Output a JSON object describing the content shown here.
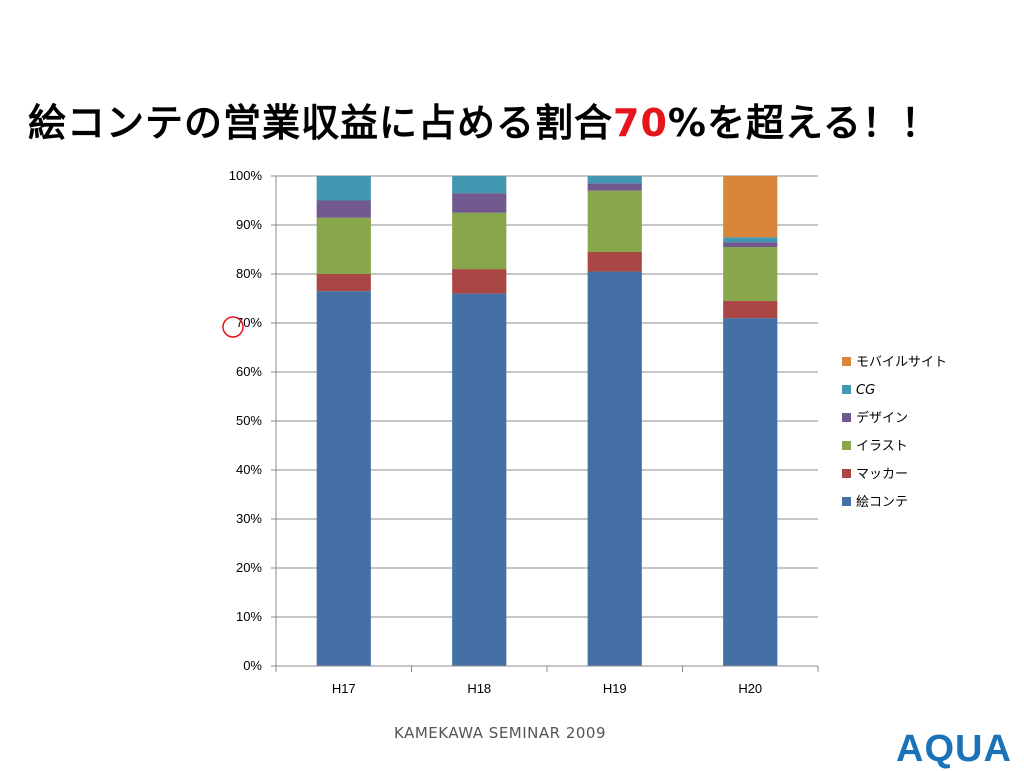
{
  "slide": {
    "title_pre": "絵コンテの営業収益に占める割合",
    "title_accent": "70",
    "title_post": "%を超える！！",
    "footer": "KAMEKAWA SEMINAR 2009",
    "logo": "AQUA",
    "accent_color": "#e8141b",
    "logo_color": "#1a73b8"
  },
  "chart_data": {
    "type": "bar",
    "stacked": true,
    "percent": true,
    "categories": [
      "H17",
      "H18",
      "H19",
      "H20"
    ],
    "ylim": [
      0,
      100
    ],
    "yticks": [
      "0%",
      "10%",
      "20%",
      "30%",
      "40%",
      "50%",
      "60%",
      "70%",
      "80%",
      "90%",
      "100%"
    ],
    "grid": true,
    "legend_position": "right",
    "highlight_circle_at": 70,
    "series": [
      {
        "name": "絵コンテ",
        "color": "#4470a6",
        "values": [
          76.5,
          76,
          80.5,
          71
        ]
      },
      {
        "name": "マッカー",
        "color": "#aa4644",
        "values": [
          3.5,
          5,
          4,
          3.5
        ]
      },
      {
        "name": "イラスト",
        "color": "#88a64c",
        "values": [
          11.5,
          11.5,
          12.5,
          11
        ]
      },
      {
        "name": "デザイン",
        "color": "#715990",
        "values": [
          3.5,
          4,
          1.5,
          1
        ]
      },
      {
        "name": "CG",
        "color": "#4198b0",
        "values": [
          5,
          3.5,
          1.5,
          1
        ]
      },
      {
        "name": "モバイルサイト",
        "color": "#d98638",
        "values": [
          0,
          0,
          0,
          12.5
        ]
      }
    ]
  }
}
